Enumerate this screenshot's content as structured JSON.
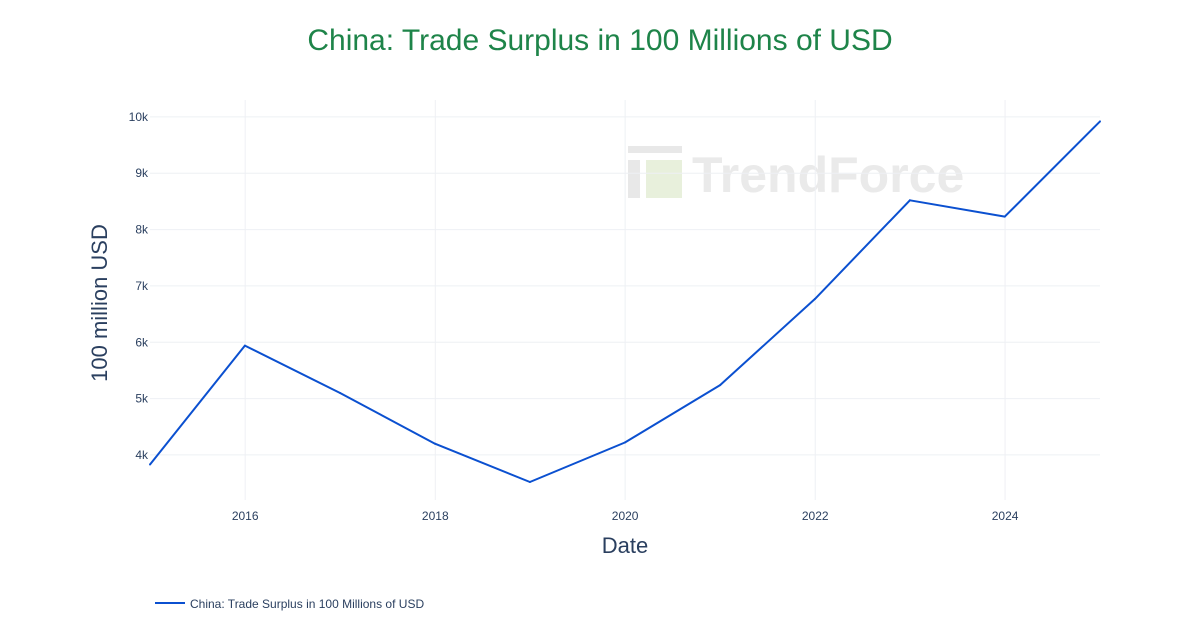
{
  "chart_data": {
    "type": "line",
    "title": "China: Trade Surplus in 100 Millions of USD",
    "title_color": "#1e8449",
    "xlabel": "Date",
    "ylabel": "100 million USD",
    "x": [
      "2014-12-31",
      "2015-12-31",
      "2016-12-31",
      "2017-12-31",
      "2018-12-31",
      "2019-12-31",
      "2020-12-31",
      "2021-12-31",
      "2022-12-31",
      "2023-12-31",
      "2024-12-31"
    ],
    "series": [
      {
        "name": "China: Trade Surplus in 100 Millions of USD",
        "color": "#0b50d0",
        "values": [
          3830,
          5940,
          5100,
          4200,
          3520,
          4220,
          5240,
          6770,
          8520,
          8230,
          9920
        ]
      }
    ],
    "xlim": [
      "2014-12-31",
      "2024-12-31"
    ],
    "ylim": [
      3200,
      10300
    ],
    "x_ticks": [
      {
        "label": "2016",
        "date": "2016-01-01"
      },
      {
        "label": "2018",
        "date": "2018-01-01"
      },
      {
        "label": "2020",
        "date": "2020-01-01"
      },
      {
        "label": "2022",
        "date": "2022-01-01"
      },
      {
        "label": "2024",
        "date": "2024-01-01"
      }
    ],
    "y_ticks": [
      {
        "label": "4k",
        "value": 4000
      },
      {
        "label": "5k",
        "value": 5000
      },
      {
        "label": "6k",
        "value": 6000
      },
      {
        "label": "7k",
        "value": 7000
      },
      {
        "label": "8k",
        "value": 8000
      },
      {
        "label": "9k",
        "value": 9000
      },
      {
        "label": "10k",
        "value": 10000
      }
    ],
    "grid": true,
    "legend_position": "bottom-left",
    "watermark": "TrendForce"
  }
}
